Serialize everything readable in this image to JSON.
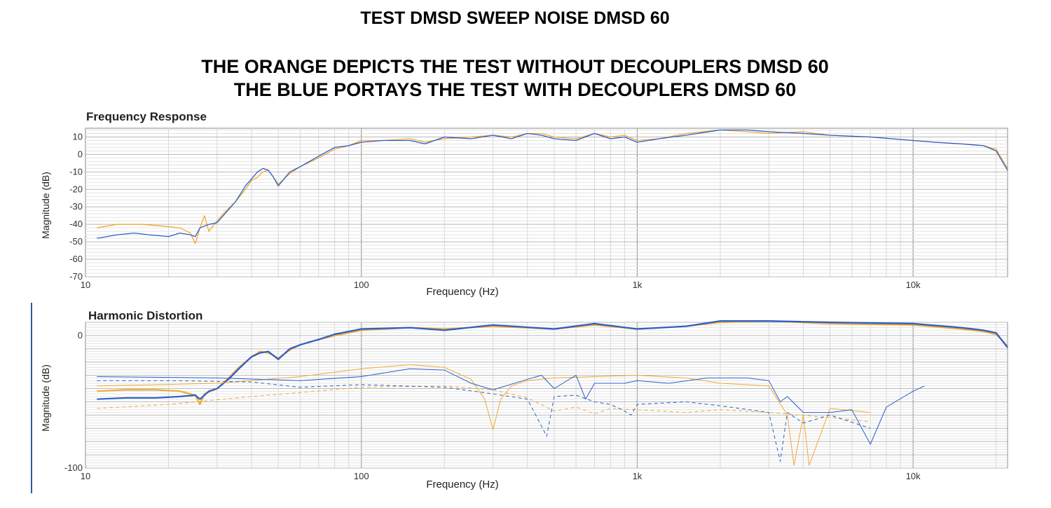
{
  "header": {
    "title": "TEST DMSD SWEEP NOISE DMSD 60",
    "line1": "THE ORANGE DEPICTS THE TEST WITHOUT DECOUPLERS DMSD 60",
    "line2": "THE BLUE PORTAYS THE  TEST WITH DECOUPLERS DMSD 60"
  },
  "colors": {
    "without_decouplers": "#f2a930",
    "with_decouplers": "#2b5fc9",
    "grid_major": "#9a9a9a",
    "grid_minor": "#d6d6d6"
  },
  "chart_data": [
    {
      "type": "line",
      "title": "Frequency Response",
      "xlabel": "Frequency (Hz)",
      "ylabel": "Magnitude (dB)",
      "xscale": "log",
      "xlim": [
        10,
        22000
      ],
      "ylim": [
        -70,
        15
      ],
      "xticks": [
        10,
        100,
        1000,
        10000
      ],
      "xtick_labels": [
        "10",
        "100",
        "1k",
        "10k"
      ],
      "yticks": [
        10,
        0,
        -10,
        -20,
        -30,
        -40,
        -50,
        -60,
        -70
      ],
      "ytick_labels": [
        "10",
        "0",
        "-10",
        "-20",
        "-30",
        "-40",
        "-50",
        "-60",
        "-70"
      ],
      "grid": true,
      "series": [
        {
          "color": "#f2a930",
          "x": [
            11,
            13,
            16,
            19,
            22,
            24,
            25,
            26,
            27,
            28,
            30,
            32,
            35,
            38,
            40,
            42,
            44,
            46,
            48,
            50,
            55,
            60,
            70,
            80,
            90,
            100,
            120,
            150,
            170,
            200,
            250,
            300,
            350,
            400,
            450,
            500,
            600,
            700,
            800,
            900,
            1000,
            1200,
            1500,
            2000,
            2500,
            3000,
            4000,
            5000,
            7000,
            10000,
            12000,
            15000,
            18000,
            20000,
            22000
          ],
          "y": [
            -42,
            -40,
            -40,
            -41,
            -42,
            -45,
            -51,
            -42,
            -35,
            -44,
            -38,
            -33,
            -27,
            -20,
            -15,
            -13,
            -10,
            -9,
            -13,
            -17,
            -11,
            -7,
            -2,
            3,
            5,
            8,
            8,
            9,
            7,
            9,
            10,
            11,
            10,
            12,
            12,
            10,
            9,
            12,
            10,
            11,
            8,
            9,
            12,
            14,
            13,
            12,
            13,
            11,
            10,
            8,
            7,
            6,
            5,
            3,
            -8
          ]
        },
        {
          "color": "#2b5fc9",
          "x": [
            11,
            13,
            15,
            17,
            20,
            22,
            24,
            25,
            26,
            28,
            30,
            32,
            35,
            38,
            40,
            42,
            44,
            46,
            48,
            50,
            55,
            60,
            70,
            80,
            90,
            100,
            120,
            150,
            170,
            200,
            250,
            300,
            350,
            400,
            450,
            500,
            600,
            700,
            800,
            900,
            1000,
            1200,
            1500,
            2000,
            2500,
            3000,
            4000,
            5000,
            7000,
            10000,
            12000,
            15000,
            18000,
            20000,
            22000
          ],
          "y": [
            -48,
            -46,
            -45,
            -46,
            -47,
            -45,
            -46,
            -47,
            -42,
            -40,
            -39,
            -34,
            -27,
            -18,
            -14,
            -10,
            -8,
            -9,
            -13,
            -18,
            -10,
            -7,
            -1,
            4,
            5,
            7,
            8,
            8,
            6,
            10,
            9,
            11,
            9,
            12,
            11,
            9,
            8,
            12,
            9,
            10,
            7,
            9,
            11,
            14,
            14,
            13,
            12,
            11,
            10,
            8,
            7,
            6,
            5,
            2,
            -9
          ]
        }
      ]
    },
    {
      "type": "line",
      "title": "Harmonic Distortion",
      "xlabel": "Frequency (Hz)",
      "ylabel": "Magnitude (dB)",
      "xscale": "log",
      "xlim": [
        10,
        22000
      ],
      "ylim": [
        -100,
        10
      ],
      "xticks": [
        10,
        100,
        1000,
        10000
      ],
      "xtick_labels": [
        "10",
        "100",
        "1k",
        "10k"
      ],
      "yticks": [
        0,
        -100
      ],
      "ytick_labels": [
        "0",
        "-100"
      ],
      "grid": true,
      "series": [
        {
          "color": "#f2a930",
          "width": 2.2,
          "x": [
            11,
            14,
            18,
            22,
            25,
            26,
            27,
            30,
            33,
            36,
            40,
            43,
            46,
            50,
            55,
            60,
            70,
            80,
            100,
            150,
            200,
            300,
            500,
            700,
            1000,
            1500,
            2000,
            3000,
            5000,
            10000,
            15000,
            18000,
            20000,
            22000
          ],
          "y": [
            -42,
            -41,
            -41,
            -42,
            -45,
            -52,
            -44,
            -40,
            -32,
            -24,
            -16,
            -12,
            -13,
            -17,
            -11,
            -7,
            -3,
            0,
            4,
            6,
            5,
            7,
            5,
            8,
            5,
            7,
            10,
            11,
            9,
            8,
            5,
            3,
            1,
            -8
          ]
        },
        {
          "color": "#2b5fc9",
          "width": 2.2,
          "x": [
            11,
            14,
            18,
            22,
            25,
            26,
            28,
            30,
            33,
            36,
            40,
            43,
            46,
            50,
            55,
            60,
            70,
            80,
            100,
            150,
            200,
            300,
            500,
            700,
            1000,
            1500,
            2000,
            3000,
            5000,
            10000,
            15000,
            18000,
            20000,
            22000
          ],
          "y": [
            -48,
            -47,
            -47,
            -46,
            -45,
            -48,
            -42,
            -40,
            -33,
            -25,
            -16,
            -13,
            -12,
            -18,
            -10,
            -7,
            -3,
            1,
            5,
            6,
            4,
            8,
            5,
            9,
            5,
            7,
            11,
            11,
            10,
            9,
            6,
            4,
            2,
            -9
          ]
        },
        {
          "color": "#f2a930",
          "width": 1,
          "x": [
            11,
            30,
            60,
            100,
            150,
            200,
            250,
            280,
            300,
            320,
            350,
            400,
            500,
            700,
            1000,
            1500,
            2000,
            3000,
            3500,
            3700,
            4000,
            4200,
            5000,
            7000
          ],
          "y": [
            -38,
            -36,
            -31,
            -25,
            -22,
            -24,
            -33,
            -48,
            -71,
            -48,
            -38,
            -34,
            -32,
            -31,
            -30,
            -32,
            -36,
            -38,
            -60,
            -98,
            -60,
            -98,
            -55,
            -58
          ]
        },
        {
          "color": "#2b5fc9",
          "width": 1,
          "x": [
            11,
            30,
            60,
            100,
            150,
            200,
            250,
            300,
            400,
            450,
            500,
            600,
            650,
            700,
            800,
            900,
            1000,
            1300,
            1800,
            2500,
            3000,
            3300,
            3500,
            4000,
            5000,
            6000,
            7000,
            8000,
            10000,
            11000
          ],
          "y": [
            -31,
            -32,
            -34,
            -31,
            -25,
            -26,
            -36,
            -41,
            -33,
            -30,
            -40,
            -30,
            -48,
            -36,
            -36,
            -36,
            -34,
            -36,
            -32,
            -32,
            -34,
            -50,
            -46,
            -58,
            -58,
            -56,
            -82,
            -54,
            -42,
            -38
          ]
        },
        {
          "color": "#f2a930",
          "width": 1,
          "dash": "5,4",
          "x": [
            11,
            20,
            40,
            60,
            100,
            200,
            300,
            400,
            500,
            600,
            700,
            800,
            1000,
            1500,
            2000,
            3000,
            5000,
            7000
          ],
          "y": [
            -55,
            -52,
            -46,
            -43,
            -39,
            -38,
            -41,
            -47,
            -57,
            -54,
            -59,
            -55,
            -56,
            -58,
            -56,
            -58,
            -62,
            -65
          ]
        },
        {
          "color": "#2b5fc9",
          "width": 1,
          "dash": "5,4",
          "x": [
            11,
            20,
            40,
            60,
            100,
            200,
            300,
            400,
            470,
            500,
            600,
            700,
            800,
            900,
            950,
            1000,
            1500,
            2000,
            3000,
            3300,
            3500,
            4000,
            5000,
            7000
          ],
          "y": [
            -34,
            -34,
            -35,
            -39,
            -37,
            -39,
            -44,
            -48,
            -76,
            -46,
            -45,
            -50,
            -52,
            -57,
            -60,
            -52,
            -50,
            -53,
            -58,
            -95,
            -58,
            -66,
            -60,
            -70
          ]
        }
      ]
    }
  ]
}
